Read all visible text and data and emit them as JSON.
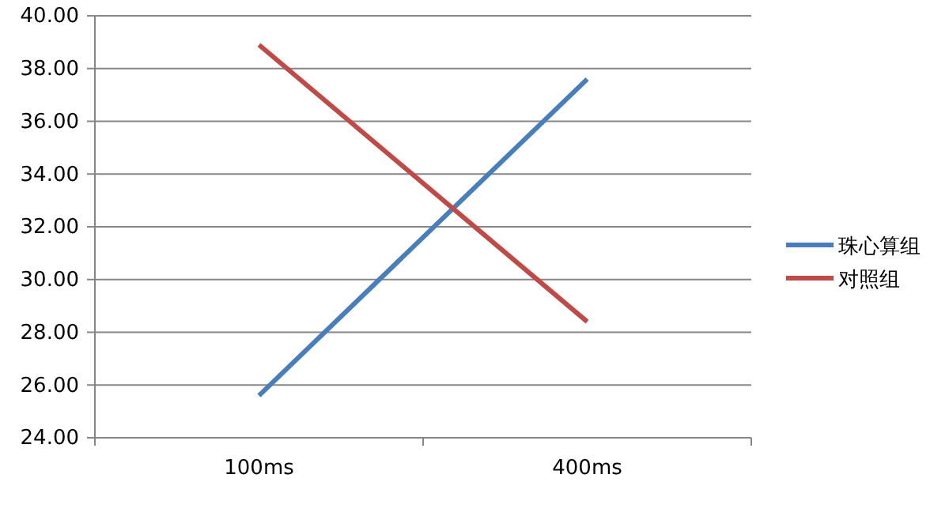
{
  "chart_data": {
    "type": "line",
    "categories": [
      "100ms",
      "400ms"
    ],
    "series": [
      {
        "name": "珠心算组",
        "color": "#4a7ebb",
        "values": [
          25.6,
          37.6
        ]
      },
      {
        "name": "对照组",
        "color": "#be4b48",
        "values": [
          38.9,
          28.4
        ]
      }
    ],
    "ylim": [
      24,
      40
    ],
    "yticks": [
      {
        "value": 24,
        "label": "24.00"
      },
      {
        "value": 26,
        "label": "26.00"
      },
      {
        "value": 28,
        "label": "28.00"
      },
      {
        "value": 30,
        "label": "30.00"
      },
      {
        "value": 32,
        "label": "32.00"
      },
      {
        "value": 34,
        "label": "34.00"
      },
      {
        "value": 36,
        "label": "36.00"
      },
      {
        "value": 38,
        "label": "38.00"
      },
      {
        "value": 40,
        "label": "40.00"
      }
    ],
    "grid": "y",
    "legend": "right",
    "marker": "none",
    "line_style": "solid"
  }
}
